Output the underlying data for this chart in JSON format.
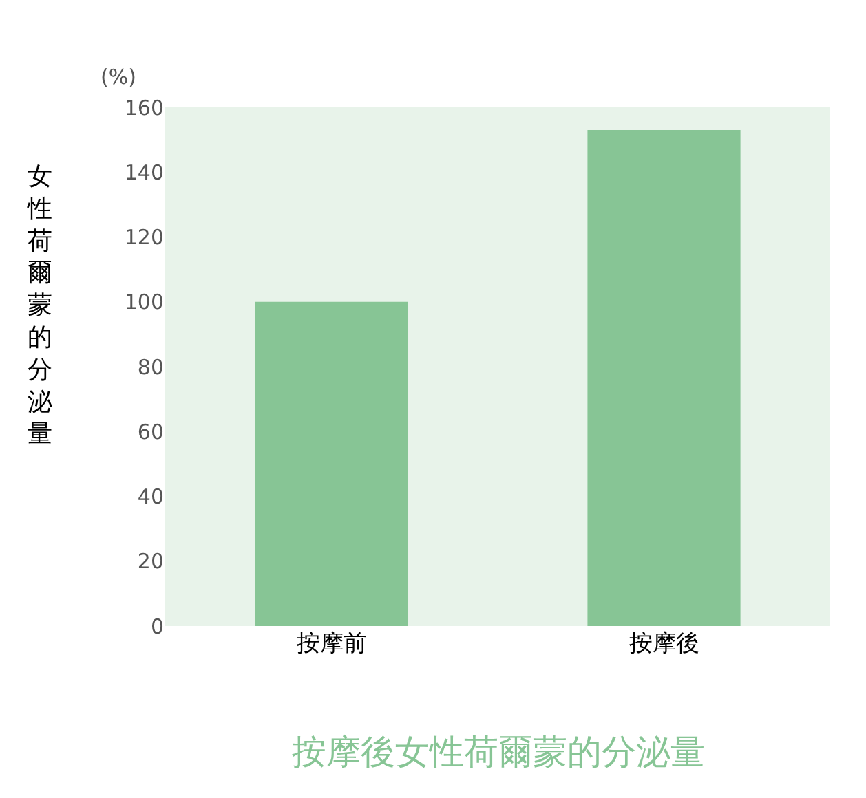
{
  "chart_data": {
    "type": "bar",
    "title": "按摩後女性荷爾蒙的分泌量",
    "ylabel": "女性荷爾蒙的分泌量",
    "annotations": [
      "(%)"
    ],
    "categories": [
      "按摩前",
      "按摩後"
    ],
    "values": [
      100,
      153
    ],
    "color": "#87c595",
    "ylim": [
      0,
      160
    ],
    "yticks": [
      0,
      20,
      40,
      60,
      80,
      100,
      120,
      140,
      160
    ],
    "grid": false,
    "legend": false
  }
}
